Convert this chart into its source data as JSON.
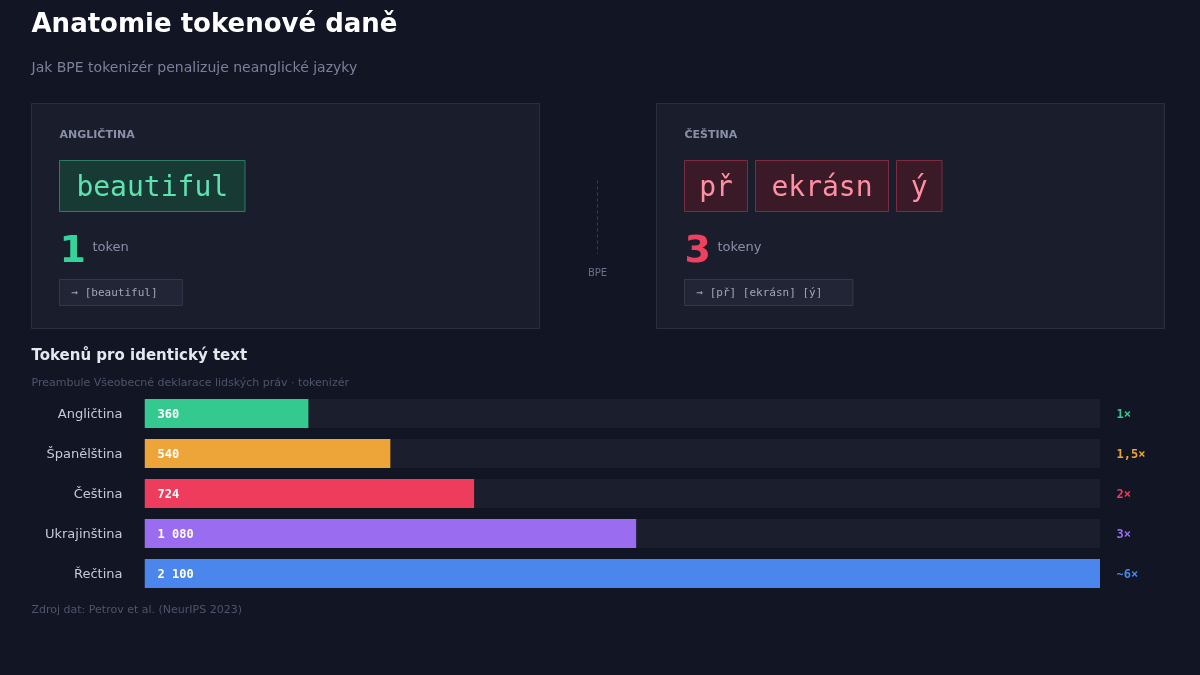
{
  "chart_data": [
    {
      "type": "other",
      "title": "Anatomie tokenové daně",
      "subtitle": "Jak BPE tokenizér penalizuje neanglické jazyky",
      "annotations": [
        "ANGLIČTINA",
        "beautiful",
        "1",
        "token",
        "→ [beautiful]",
        "BPE",
        "ČEŠTINA",
        "př",
        "ekrásn",
        "ý",
        "3",
        "tokeny",
        "→ [př] [ekrásn] [ý]"
      ]
    },
    {
      "type": "bar",
      "orientation": "horizontal",
      "title": "Tokenů pro identický text",
      "subtitle": "Preambule Všeobecné deklarace lidských práv · tokenizér",
      "categories": [
        "Angličtina",
        "Španělština",
        "Čeština",
        "Ukrajinština",
        "Řečtina"
      ],
      "values": [
        360,
        540,
        724,
        1080,
        2100
      ],
      "value_labels": [
        "360",
        "540",
        "724",
        "1 080",
        "2 100"
      ],
      "colors": [
        "#34c98f",
        "#eda53a",
        "#ee3d5c",
        "#9a6cf0",
        "#4a86ec"
      ],
      "xlim": [
        0,
        2100
      ],
      "grid": false,
      "annotations": [
        "1×",
        "1,5×",
        "2×",
        "3×",
        "~6×",
        "Zdroj dat: Petrov et al. (NeurIPS 2023)"
      ]
    }
  ]
}
